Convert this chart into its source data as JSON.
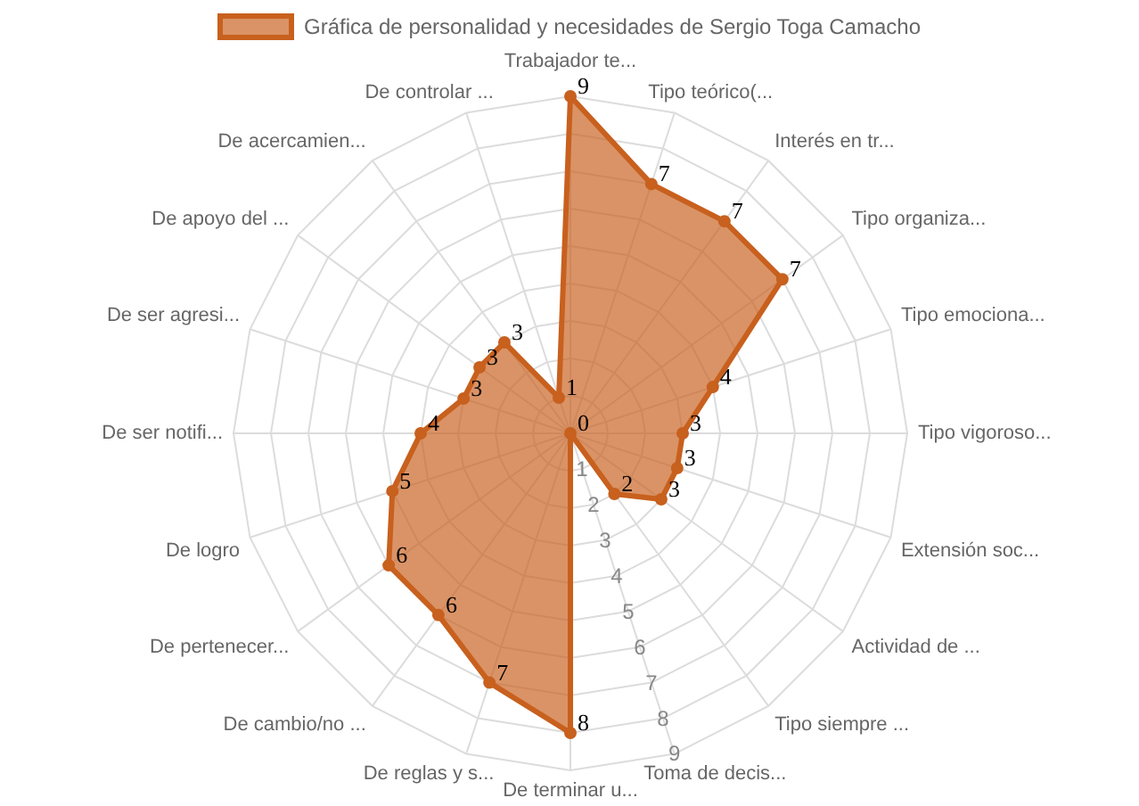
{
  "chart_data": {
    "type": "radar",
    "categories": [
      "Trabajador te...",
      "Tipo teórico(...",
      "Interés en tr...",
      "Tipo organiza...",
      "Tipo emociona...",
      "Tipo vigoroso...",
      "Extensión soc...",
      "Actividad de ...",
      "Tipo siempre ...",
      "Toma de decis...",
      "De terminar u...",
      "De reglas y s...",
      "De cambio/no ...",
      "De pertenecer...",
      "De logro",
      "De ser notifi...",
      "De ser agresi...",
      "De apoyo del ...",
      "De acercamien...",
      "De controlar ..."
    ],
    "series": [
      {
        "name": "Gráfica de personalidad y necesidades de Sergio Toga Camacho",
        "color": "#c8601e",
        "values": [
          9,
          7,
          7,
          7,
          4,
          3,
          3,
          3,
          2,
          0,
          8,
          7,
          6,
          6,
          5,
          4,
          3,
          3,
          3,
          1
        ]
      }
    ],
    "ylim": [
      0,
      9
    ],
    "yticks": [
      1,
      2,
      3,
      4,
      5,
      6,
      7,
      8,
      9
    ],
    "grid": true,
    "legend": "top",
    "data_labels": true,
    "marker": "circle"
  }
}
